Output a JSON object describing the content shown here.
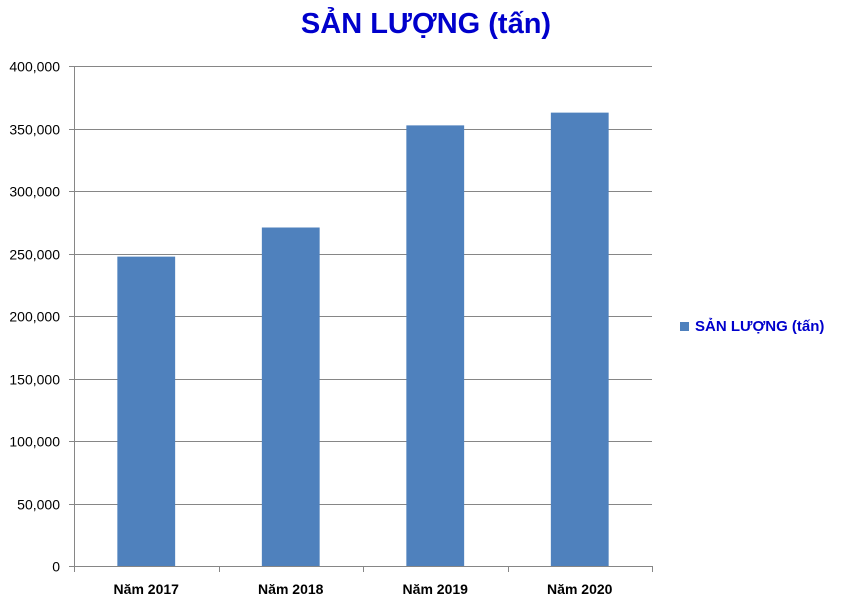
{
  "chart_data": {
    "type": "bar",
    "title": "SẢN LƯỢNG (tấn)",
    "categories": [
      "Năm 2017",
      "Năm 2018",
      "Năm 2019",
      "Năm 2020"
    ],
    "series": [
      {
        "name": "SẢN LƯỢNG (tấn)",
        "values": [
          247500,
          270800,
          352500,
          362700
        ],
        "color": "#4f81bd"
      }
    ],
    "ylim": [
      0,
      400000
    ],
    "yticks": [
      0,
      50000,
      100000,
      150000,
      200000,
      250000,
      300000,
      350000,
      400000
    ],
    "ytick_labels": [
      "0",
      "50,000",
      "100,000",
      "150,000",
      "200,000",
      "250,000",
      "300,000",
      "350,000",
      "400,000"
    ],
    "grid": true,
    "legend": "right",
    "title_color": "#0000cc"
  }
}
